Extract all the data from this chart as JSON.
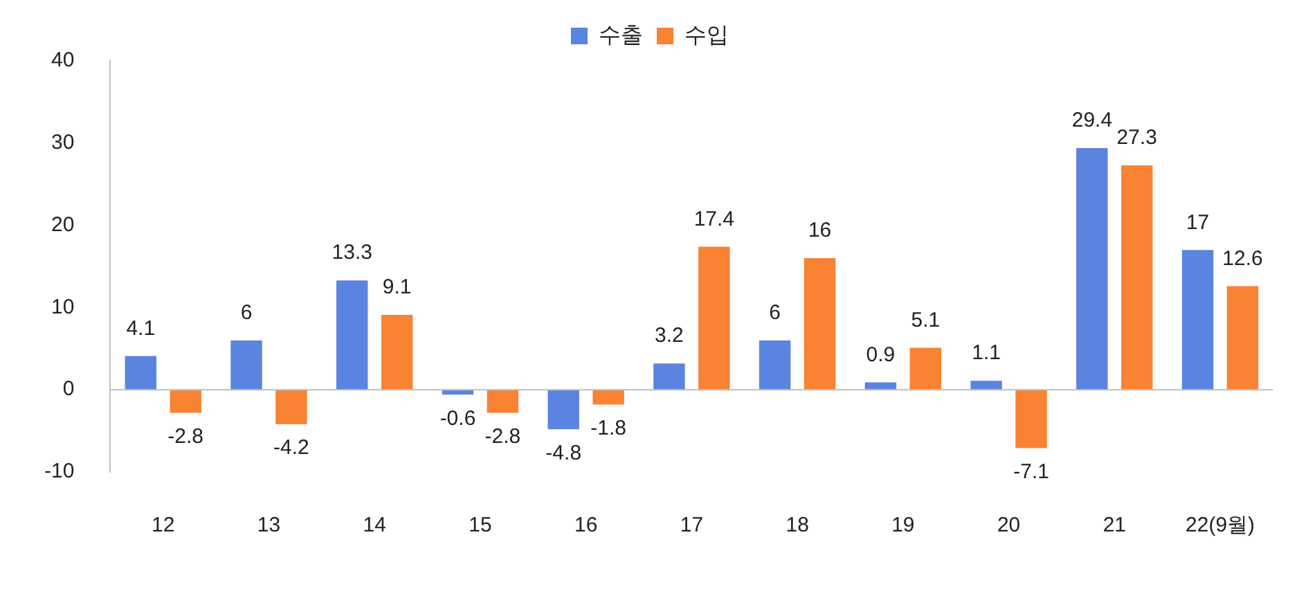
{
  "chart_data": {
    "type": "bar",
    "categories": [
      "12",
      "13",
      "14",
      "15",
      "16",
      "17",
      "18",
      "19",
      "20",
      "21",
      "22(9월)"
    ],
    "series": [
      {
        "name": "수출",
        "color": "#5b84e0",
        "values": [
          4.1,
          6,
          13.3,
          -0.6,
          -4.8,
          3.2,
          6,
          0.9,
          1.1,
          29.4,
          17
        ]
      },
      {
        "name": "수입",
        "color": "#f98233",
        "values": [
          -2.8,
          -4.2,
          9.1,
          -2.8,
          -1.8,
          17.4,
          16,
          5.1,
          -7.1,
          27.3,
          12.6
        ]
      }
    ],
    "ylim": [
      -10,
      40
    ],
    "yticks": [
      -10,
      0,
      10,
      20,
      30,
      40
    ],
    "ref_lines": [
      {
        "axis": "y",
        "value": 0,
        "color": "#bfbfbf"
      }
    ],
    "legend": "top",
    "data_labels": true
  }
}
